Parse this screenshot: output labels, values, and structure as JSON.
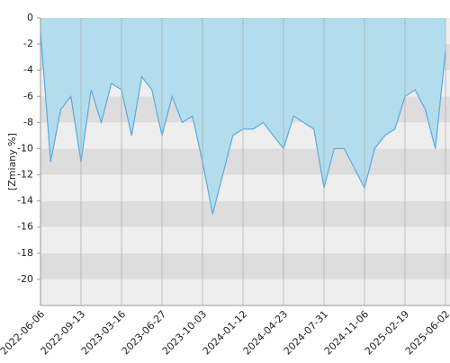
{
  "chart_data": {
    "type": "area",
    "y_label": "[Zmiany %]",
    "x": [
      "2022-06-06",
      "2022-07-01",
      "2022-07-26",
      "2022-08-19",
      "2022-09-13",
      "2022-10-29",
      "2022-12-14",
      "2023-01-29",
      "2023-03-16",
      "2023-04-11",
      "2023-05-07",
      "2023-06-01",
      "2023-06-27",
      "2023-07-21",
      "2023-08-15",
      "2023-09-09",
      "2023-10-03",
      "2023-10-28",
      "2023-11-22",
      "2023-12-18",
      "2024-01-12",
      "2024-02-06",
      "2024-03-03",
      "2024-03-28",
      "2024-04-23",
      "2024-05-18",
      "2024-06-12",
      "2024-07-06",
      "2024-07-31",
      "2024-08-24",
      "2024-09-18",
      "2024-10-12",
      "2024-11-06",
      "2024-12-02",
      "2024-12-28",
      "2025-01-24",
      "2025-02-19",
      "2025-03-17",
      "2025-04-12",
      "2025-05-08",
      "2025-06-02"
    ],
    "series": [
      {
        "color": "#5aa9e6",
        "fill": "#b3ddec",
        "values": [
          -1,
          -11,
          -7,
          -6,
          -11,
          -5.5,
          -8,
          -5,
          -5.5,
          -9,
          -4.5,
          -5.5,
          -9,
          -6,
          -8,
          -7.5,
          -11,
          -15,
          -12,
          -9,
          -8.5,
          -8.5,
          -8,
          -9,
          -10,
          -7.5,
          -8,
          -8.5,
          -13,
          -10,
          -10,
          -11.5,
          -13,
          -10,
          -9,
          -8.5,
          -6,
          -5.5,
          -7,
          -10,
          -2.5
        ]
      }
    ],
    "ylim": [
      -22,
      0
    ],
    "yticks": [
      0,
      -2,
      -4,
      -6,
      -8,
      -10,
      -12,
      -14,
      -16,
      -18,
      -20
    ],
    "xticks": [
      "2022-06-06",
      "2022-09-13",
      "2023-03-16",
      "2023-06-27",
      "2023-10-03",
      "2024-01-12",
      "2024-04-23",
      "2024-07-31",
      "2024-11-06",
      "2025-02-19",
      "2025-06-02"
    ],
    "grid": true,
    "band_colors": [
      "#eeeeee",
      "#dddddd"
    ]
  }
}
